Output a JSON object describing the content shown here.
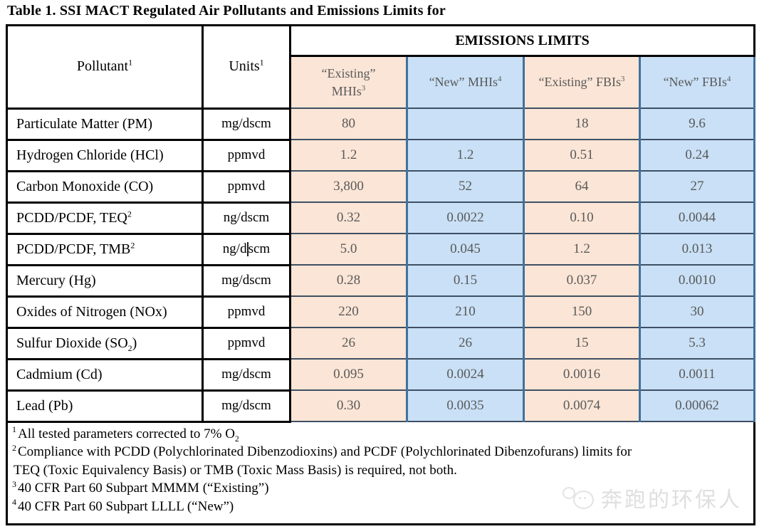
{
  "title": "Table 1. SSI MACT Regulated Air Pollutants and Emissions Limits for",
  "table": {
    "header": {
      "pollutant": "Pollutant<sup>1</sup>",
      "units": "Units<sup>1</sup>",
      "emissions_limits": "EMISSIONS LIMITS",
      "columns": [
        {
          "label": "“Existing”<br>MHIs<sup>3</sup>",
          "style": "pink"
        },
        {
          "label": "“New” MHIs<sup>4</sup>",
          "style": "blue"
        },
        {
          "label": "“Existing” FBIs<sup>3</sup>",
          "style": "pink"
        },
        {
          "label": "“New” FBIs<sup>4</sup>",
          "style": "blue"
        }
      ]
    },
    "rows": [
      {
        "pollutant": "Particulate Matter (PM)",
        "units": "mg/dscm",
        "existing_mhi": "80",
        "new_mhi": "",
        "existing_fbi": "18",
        "new_fbi": "9.6"
      },
      {
        "pollutant": "Hydrogen Chloride (HCl)",
        "units": "ppmvd",
        "existing_mhi": "1.2",
        "new_mhi": "1.2",
        "existing_fbi": "0.51",
        "new_fbi": "0.24"
      },
      {
        "pollutant": "Carbon Monoxide (CO)",
        "units": "ppmvd",
        "existing_mhi": "3,800",
        "new_mhi": "52",
        "existing_fbi": "64",
        "new_fbi": "27"
      },
      {
        "pollutant": "PCDD/PCDF, TEQ<sup>2</sup>",
        "units": "ng/dscm",
        "existing_mhi": "0.32",
        "new_mhi": "0.0022",
        "existing_fbi": "0.10",
        "new_fbi": "0.0044"
      },
      {
        "pollutant": "PCDD/PCDF, TMB<sup>2</sup>",
        "units": "ng/d<span class=\"caret\" data-name=\"text-cursor\" data-interactable=\"false\"></span>scm",
        "existing_mhi": "5.0",
        "new_mhi": "0.045",
        "existing_fbi": "1.2",
        "new_fbi": "0.013"
      },
      {
        "pollutant": "Mercury (Hg)",
        "units": "mg/dscm",
        "existing_mhi": "0.28",
        "new_mhi": "0.15",
        "existing_fbi": "0.037",
        "new_fbi": "0.0010"
      },
      {
        "pollutant": "Oxides of Nitrogen (NOx)",
        "units": "ppmvd",
        "existing_mhi": "220",
        "new_mhi": "210",
        "existing_fbi": "150",
        "new_fbi": "30"
      },
      {
        "pollutant": "Sulfur Dioxide (SO<sub>2</sub>)",
        "units": "ppmvd",
        "existing_mhi": "26",
        "new_mhi": "26",
        "existing_fbi": "15",
        "new_fbi": "5.3"
      },
      {
        "pollutant": "Cadmium (Cd)",
        "units": "mg/dscm",
        "existing_mhi": "0.095",
        "new_mhi": "0.0024",
        "existing_fbi": "0.0016",
        "new_fbi": "0.0011"
      },
      {
        "pollutant": "Lead (Pb)",
        "units": "mg/dscm",
        "existing_mhi": "0.30",
        "new_mhi": "0.0035",
        "existing_fbi": "0.0074",
        "new_fbi": "0.00062"
      }
    ]
  },
  "footnotes": [
    {
      "sup": "1",
      "text": "All tested parameters corrected to 7% O<sub>2</sub>"
    },
    {
      "sup": "2",
      "text": "Compliance with PCDD (Polychlorinated Dibenzodioxins) and PCDF (Polychlorinated Dibenzofurans) limits for"
    },
    {
      "sup": "",
      "text": "TEQ (Toxic Equivalency Basis) or TMB (Toxic Mass Basis) is required, not both."
    },
    {
      "sup": "3",
      "text": "40 CFR Part 60 Subpart MMMM (“Existing”)"
    },
    {
      "sup": "4",
      "text": "40 CFR Part 60 Subpart LLLL (“New”)"
    }
  ],
  "watermark": {
    "text": "奔跑的环保人"
  },
  "colors": {
    "pink": "#FBE5D6",
    "blue": "#C9E0F6",
    "border_blue": "#41719C",
    "cell_text": "#595959",
    "grid_black": "#000000"
  }
}
